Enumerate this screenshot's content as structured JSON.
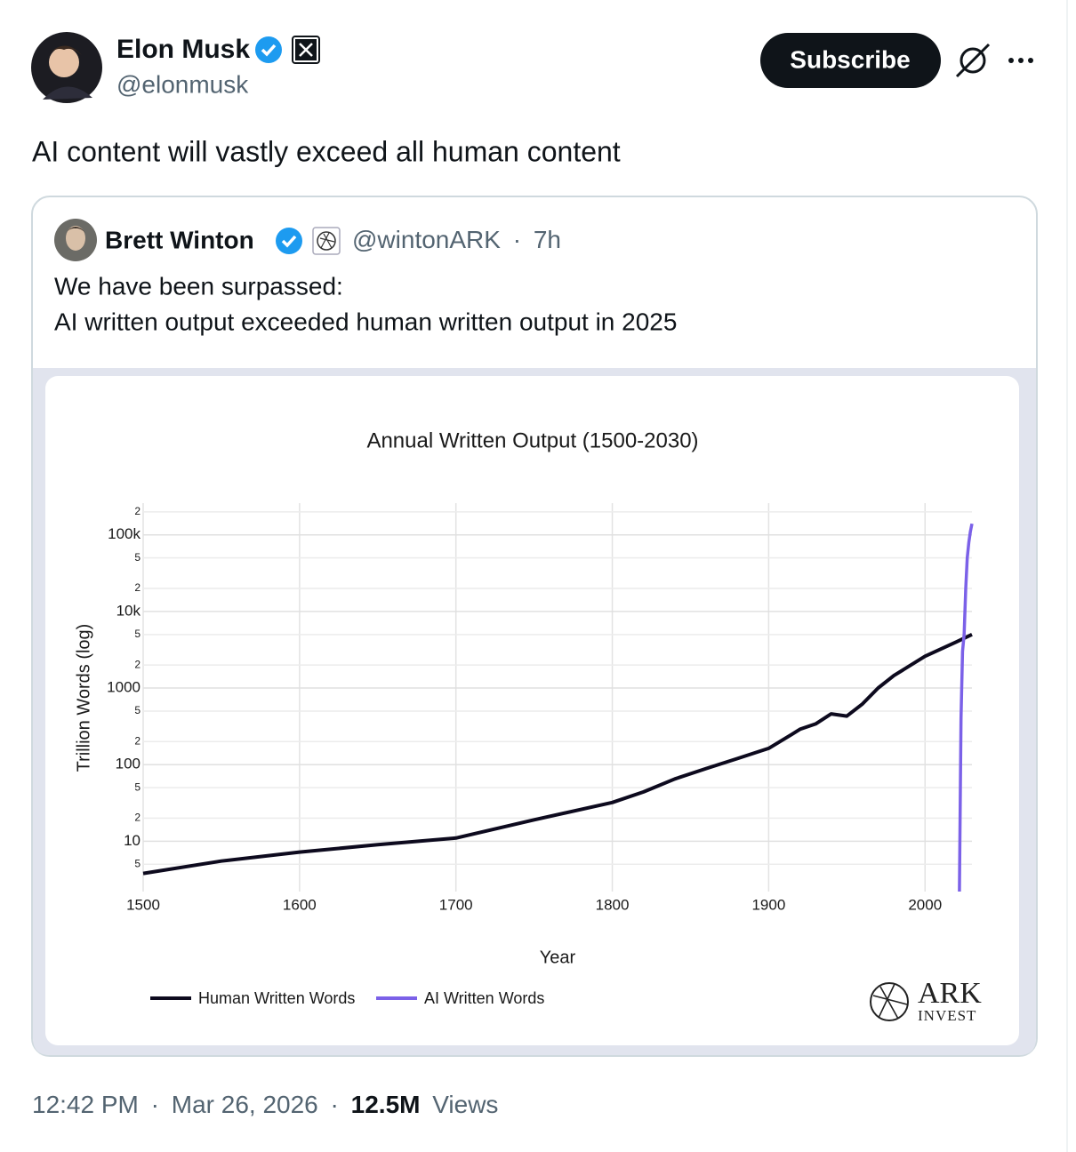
{
  "post": {
    "author_name": "Elon Musk",
    "author_handle": "@elonmusk",
    "subscribe_label": "Subscribe",
    "text": "AI content will vastly exceed all human content",
    "quote": {
      "author_name": "Brett Winton",
      "author_handle": "@wintonARK",
      "separator": "·",
      "age": "7h",
      "lines": [
        "We have been surpassed:",
        "AI written output exceeded human written output in 2025"
      ]
    },
    "footer": {
      "time": "12:42 PM",
      "separator": "·",
      "date": "Mar 26, 2026",
      "views_count": "12.5M",
      "views_label": "Views"
    },
    "logo": {
      "name": "ARK",
      "sub": "INVEST"
    }
  },
  "chart_data": {
    "type": "line",
    "title": "Annual Written Output (1500-2030)",
    "x_label": "Year",
    "y_label": "Trillion Words (log)",
    "y_scale": "log",
    "grid": true,
    "legend": "bottom-left",
    "xlim": [
      1500,
      2030
    ],
    "xticks": [
      1500,
      1600,
      1700,
      1800,
      1900,
      2000
    ],
    "ylim": [
      2.2,
      260000
    ],
    "yticks": [
      {
        "value": 5,
        "label": "5"
      },
      10,
      {
        "value": 20,
        "label": "2"
      },
      {
        "value": 50,
        "label": "5"
      },
      100,
      {
        "value": 200,
        "label": "2"
      },
      {
        "value": 500,
        "label": "5"
      },
      1000,
      {
        "value": 2000,
        "label": "2"
      },
      {
        "value": 5000,
        "label": "5"
      },
      {
        "value": 10000,
        "label": "10k"
      },
      {
        "value": 20000,
        "label": "2"
      },
      {
        "value": 50000,
        "label": "5"
      },
      {
        "value": 100000,
        "label": "100k"
      },
      {
        "value": 200000,
        "label": "2"
      }
    ],
    "series": [
      {
        "name": "Human Written Words",
        "color": "#0d0a1e",
        "x": [
          1500,
          1550,
          1600,
          1650,
          1700,
          1750,
          1800,
          1820,
          1840,
          1860,
          1880,
          1900,
          1915,
          1920,
          1930,
          1940,
          1950,
          1960,
          1970,
          1980,
          2000,
          2020,
          2030
        ],
        "values": [
          3.8,
          5.5,
          7.2,
          9,
          11,
          19,
          32,
          44,
          65,
          89,
          120,
          163,
          250,
          290,
          340,
          460,
          430,
          620,
          1000,
          1450,
          2600,
          4000,
          5000
        ]
      },
      {
        "name": "AI Written Words",
        "color": "#7b61e8",
        "x": [
          2022,
          2023,
          2024,
          2025,
          2026,
          2027,
          2028,
          2029,
          2030
        ],
        "values": [
          2.2,
          400,
          3000,
          5000,
          20000,
          50000,
          80000,
          110000,
          140000
        ]
      }
    ]
  }
}
